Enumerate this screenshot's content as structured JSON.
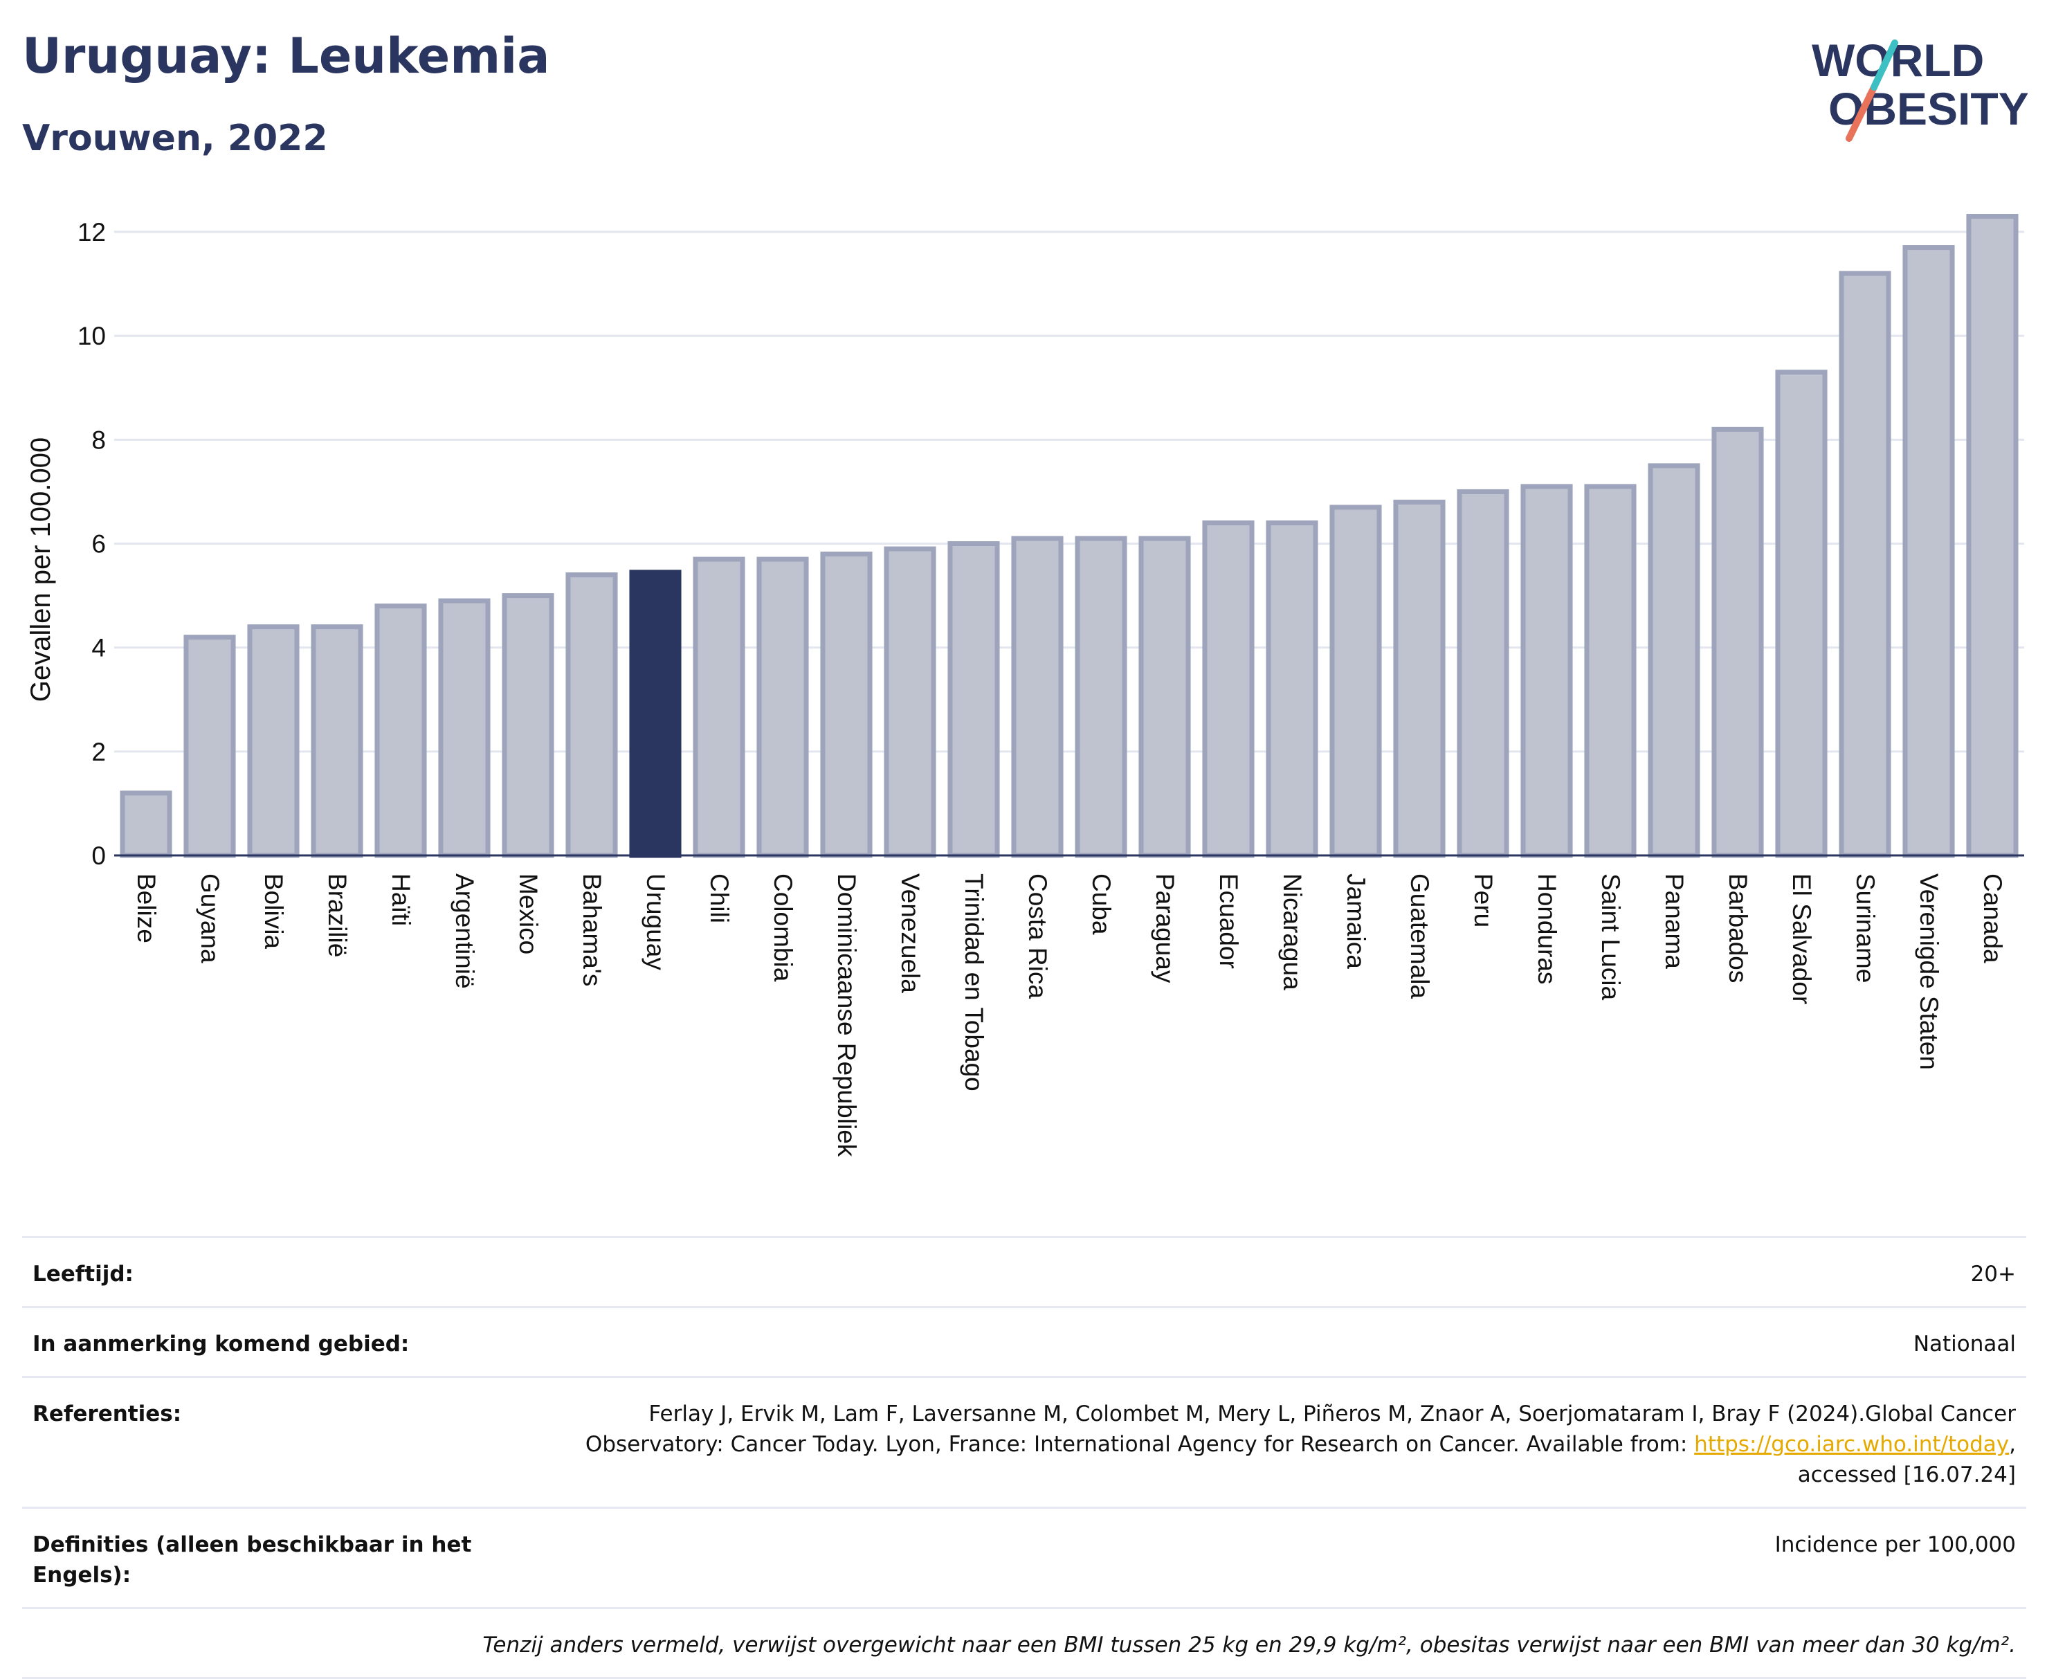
{
  "header": {
    "title": "Uruguay: Leukemia",
    "subtitle": "Vrouwen, 2022"
  },
  "logo": {
    "line1": "WORLD",
    "line2": "OBESITY"
  },
  "colors": {
    "highlight": "#2b3660",
    "bar": "#bfc3d0",
    "bar_stroke": "#9ea4bb",
    "title": "#2b3660",
    "link": "#e6a900"
  },
  "chart_data": {
    "type": "bar",
    "ylabel": "Gevallen per 100.000",
    "xlabel": "",
    "ylim": [
      0,
      12.6
    ],
    "yticks": [
      0,
      2,
      4,
      6,
      8,
      10,
      12
    ],
    "grid": true,
    "highlight": "Uruguay",
    "categories": [
      "Belize",
      "Guyana",
      "Bolivia",
      "Brazilië",
      "Haïti",
      "Argentinië",
      "Mexico",
      "Bahama's",
      "Uruguay",
      "Chili",
      "Colombia",
      "Dominicaanse Republiek",
      "Venezuela",
      "Trinidad en Tobago",
      "Costa Rica",
      "Cuba",
      "Paraguay",
      "Ecuador",
      "Nicaragua",
      "Jamaica",
      "Guatemala",
      "Peru",
      "Honduras",
      "Saint Lucia",
      "Panama",
      "Barbados",
      "El Salvador",
      "Suriname",
      "Verenigde Staten",
      "Canada"
    ],
    "values": [
      1.2,
      4.2,
      4.4,
      4.4,
      4.8,
      4.9,
      5.0,
      5.4,
      5.45,
      5.7,
      5.7,
      5.8,
      5.9,
      6.0,
      6.1,
      6.1,
      6.1,
      6.4,
      6.4,
      6.7,
      6.8,
      7.0,
      7.1,
      7.1,
      7.5,
      8.2,
      9.3,
      11.2,
      11.7,
      12.3
    ]
  },
  "meta": {
    "age_label": "Leeftijd:",
    "age_value": "20+",
    "area_label": "In aanmerking komend gebied:",
    "area_value": "Nationaal",
    "ref_label": "Referenties:",
    "ref_text": "Ferlay J, Ervik M, Lam F, Laversanne M, Colombet M, Mery L, Piñeros M, Znaor A, Soerjomataram I, Bray F (2024).Global Cancer Observatory: Cancer Today. Lyon, France: International Agency for Research on Cancer. Available from: ",
    "ref_link": "https://gco.iarc.who.int/today",
    "ref_tail": ", accessed [16.07.24]",
    "def_label": "Definities (alleen beschikbaar in het Engels):",
    "def_value": "Incidence per 100,000",
    "note": "Tenzij anders vermeld, verwijst overgewicht naar een BMI tussen 25 kg en 29,9 kg/m², obesitas verwijst naar een BMI van meer dan 30 kg/m²."
  }
}
